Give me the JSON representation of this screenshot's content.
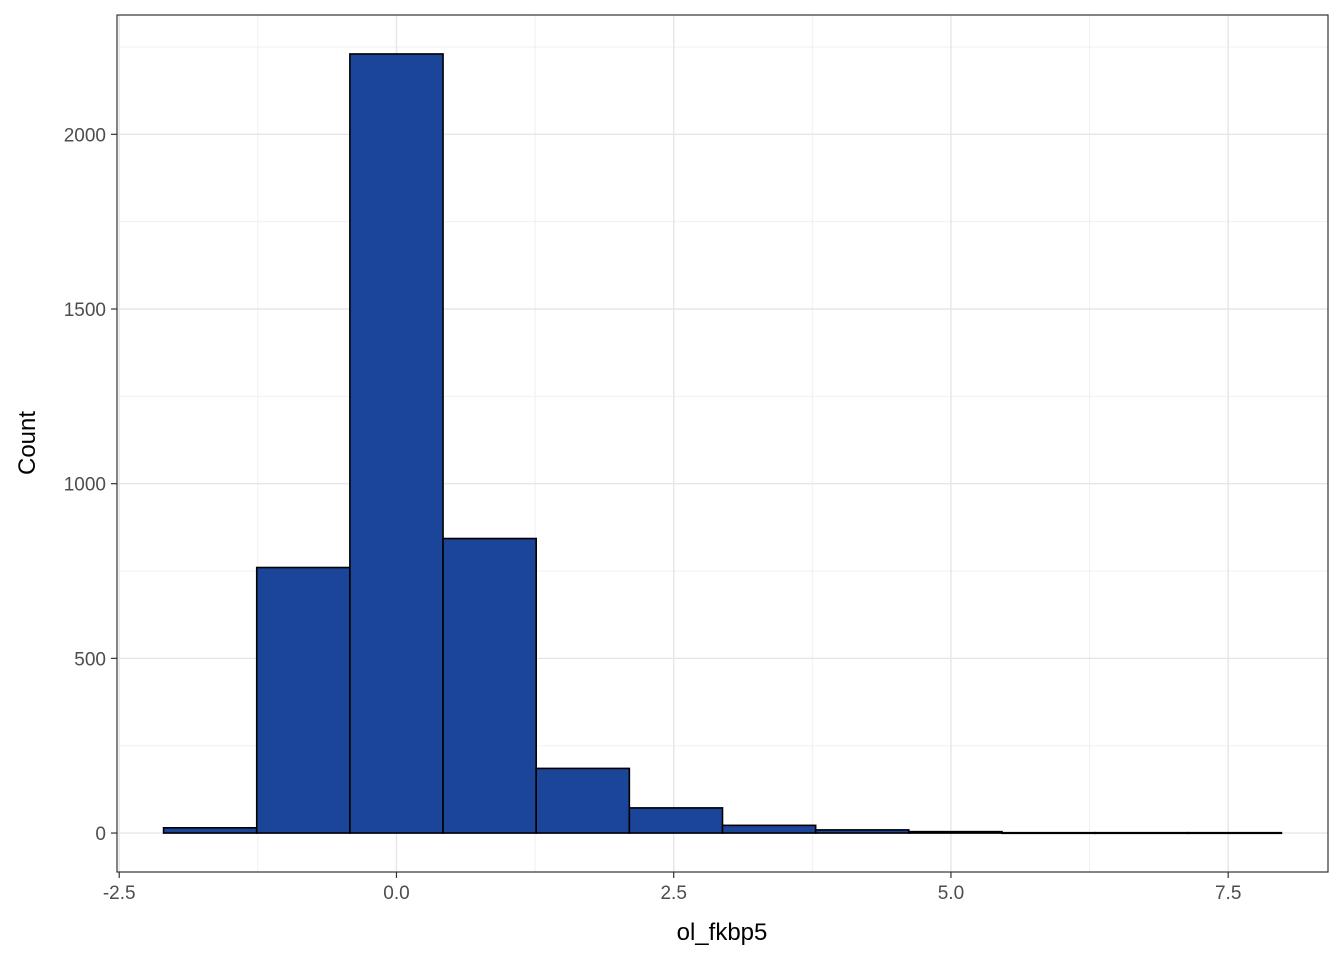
{
  "chart_data": {
    "type": "bar",
    "xlabel": "ol_fkbp5",
    "ylabel": "Count",
    "bins": [
      {
        "x0": -2.1,
        "x1": -1.26,
        "count": 15
      },
      {
        "x0": -1.26,
        "x1": -0.42,
        "count": 760
      },
      {
        "x0": -0.42,
        "x1": 0.42,
        "count": 2230
      },
      {
        "x0": 0.42,
        "x1": 1.26,
        "count": 843
      },
      {
        "x0": 1.26,
        "x1": 2.1,
        "count": 185
      },
      {
        "x0": 2.1,
        "x1": 2.94,
        "count": 72
      },
      {
        "x0": 2.94,
        "x1": 3.78,
        "count": 22
      },
      {
        "x0": 3.78,
        "x1": 4.62,
        "count": 9
      },
      {
        "x0": 4.62,
        "x1": 5.46,
        "count": 4
      },
      {
        "x0": 5.46,
        "x1": 6.3,
        "count": 1
      },
      {
        "x0": 6.3,
        "x1": 7.14,
        "count": 1
      },
      {
        "x0": 7.14,
        "x1": 7.98,
        "count": 1
      }
    ],
    "xlim": [
      -2.52,
      8.4
    ],
    "ylim": [
      -111.5,
      2341.5
    ],
    "xticks": [
      -2.5,
      0.0,
      2.5,
      5.0,
      7.5
    ],
    "xtick_labels": [
      "-2.5",
      "0.0",
      "2.5",
      "5.0",
      "7.5"
    ],
    "yticks": [
      0,
      500,
      1000,
      1500,
      2000
    ],
    "ytick_labels": [
      "0",
      "500",
      "1000",
      "1500",
      "2000"
    ],
    "grid": true,
    "bar_color": "#1a4599",
    "bar_edge_color": "#000000"
  }
}
